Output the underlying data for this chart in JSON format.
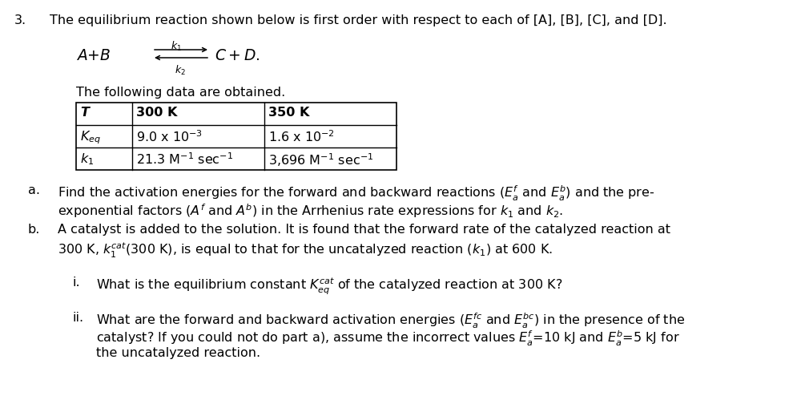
{
  "background_color": "#ffffff",
  "figsize": [
    10.0,
    5.09
  ],
  "dpi": 100,
  "title_text": "The equilibrium reaction shown below is first order with respect to each of [A], [B], [C], and [D].",
  "table_intro": "The following data are obtained.",
  "table_headers": [
    "T",
    "300 K",
    "350 K"
  ],
  "table_row1_label": "K_eq",
  "table_row1_vals": [
    "9.0 x 10",
    "1.6 x 10"
  ],
  "table_row1_exps": [
    "-3",
    "-2"
  ],
  "table_row2_label": "k_1",
  "table_row2_vals": [
    "21.3 M",
    "3,696 M"
  ],
  "table_row2_exp": "-1",
  "part_a_label": "a.",
  "part_a1": "Find the activation energies for the forward and backward reactions (",
  "part_a1b": ") and the pre-",
  "part_a2": "exponential factors (",
  "part_a2b": ") in the Arrhenius rate expressions for ",
  "part_b_label": "b.",
  "part_b1": "A catalyst is added to the solution. It is found that the forward rate of the catalyzed reaction at",
  "part_b2a": "300 K, ",
  "part_b2b": "(300 K), is equal to that for the uncatalyzed reaction (",
  "part_b2c": ") at 600 K.",
  "part_i_label": "i.",
  "part_i_a": "What is the equilibrium constant ",
  "part_i_b": " of the catalyzed reaction at 300 K?",
  "part_ii_label": "ii.",
  "part_ii1a": "What are the forward and backward activation energies (",
  "part_ii1b": ") in the presence of the",
  "part_ii2a": "catalyst? If you could not do part a), assume the incorrect values ",
  "part_ii2b": "=10 kJ and ",
  "part_ii2c": "=5 kJ for",
  "part_ii3": "the uncatalyzed reaction.",
  "font_size": 11.5,
  "font_name": "Arial"
}
